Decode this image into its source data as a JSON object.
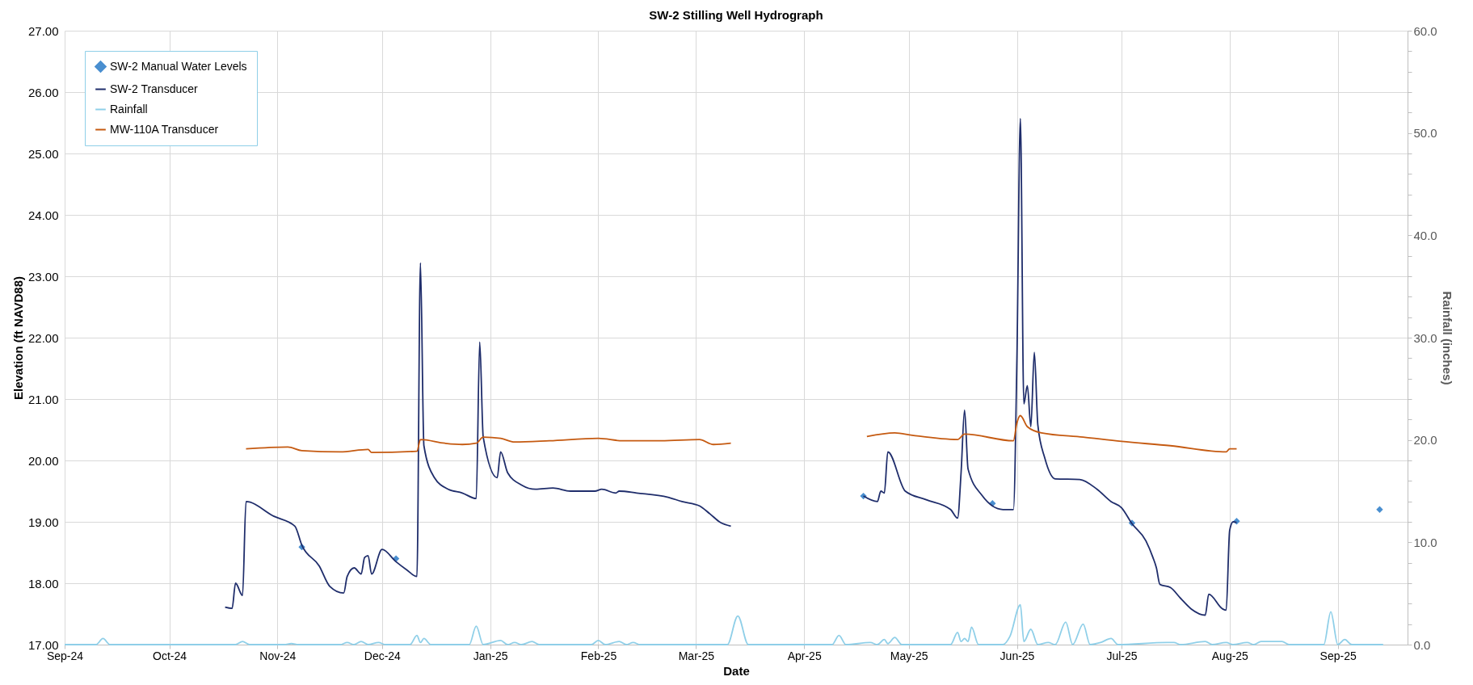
{
  "chart_data": {
    "type": "line",
    "title": "SW-2 Stilling Well Hydrograph",
    "xlabel": "Date",
    "ylabel": "Elevation (ft NAVD88)",
    "y2label": "Rainfall (inches)",
    "xlim": [
      "2024-09-01",
      "2025-09-21"
    ],
    "xticks": [
      {
        "value": "2024-09-01",
        "label": "Sep-24"
      },
      {
        "value": "2024-10-01",
        "label": "Oct-24"
      },
      {
        "value": "2024-11-01",
        "label": "Nov-24"
      },
      {
        "value": "2024-12-01",
        "label": "Dec-24"
      },
      {
        "value": "2025-01-01",
        "label": "Jan-25"
      },
      {
        "value": "2025-02-01",
        "label": "Feb-25"
      },
      {
        "value": "2025-03-01",
        "label": "Mar-25"
      },
      {
        "value": "2025-04-01",
        "label": "Apr-25"
      },
      {
        "value": "2025-05-01",
        "label": "May-25"
      },
      {
        "value": "2025-06-01",
        "label": "Jun-25"
      },
      {
        "value": "2025-07-01",
        "label": "Jul-25"
      },
      {
        "value": "2025-08-01",
        "label": "Aug-25"
      },
      {
        "value": "2025-09-01",
        "label": "Sep-25"
      }
    ],
    "ylim": [
      17,
      27
    ],
    "yticks": [
      {
        "value": 17,
        "label": "17.00"
      },
      {
        "value": 18,
        "label": "18.00"
      },
      {
        "value": 19,
        "label": "19.00"
      },
      {
        "value": 20,
        "label": "20.00"
      },
      {
        "value": 21,
        "label": "21.00"
      },
      {
        "value": 22,
        "label": "22.00"
      },
      {
        "value": 23,
        "label": "23.00"
      },
      {
        "value": 24,
        "label": "24.00"
      },
      {
        "value": 25,
        "label": "25.00"
      },
      {
        "value": 26,
        "label": "26.00"
      },
      {
        "value": 27,
        "label": "27.00"
      }
    ],
    "y2lim": [
      0,
      60
    ],
    "y2ticks": [
      {
        "value": 0,
        "label": "0.0"
      },
      {
        "value": 2,
        "label": null
      },
      {
        "value": 4,
        "label": null
      },
      {
        "value": 6,
        "label": null
      },
      {
        "value": 8,
        "label": null
      },
      {
        "value": 10,
        "label": "10.0"
      },
      {
        "value": 12,
        "label": null
      },
      {
        "value": 14,
        "label": null
      },
      {
        "value": 16,
        "label": null
      },
      {
        "value": 18,
        "label": null
      },
      {
        "value": 20,
        "label": "20.0"
      },
      {
        "value": 22,
        "label": null
      },
      {
        "value": 24,
        "label": null
      },
      {
        "value": 26,
        "label": null
      },
      {
        "value": 28,
        "label": null
      },
      {
        "value": 30,
        "label": "30.0"
      },
      {
        "value": 32,
        "label": null
      },
      {
        "value": 34,
        "label": null
      },
      {
        "value": 36,
        "label": null
      },
      {
        "value": 38,
        "label": null
      },
      {
        "value": 40,
        "label": "40.0"
      },
      {
        "value": 42,
        "label": null
      },
      {
        "value": 44,
        "label": null
      },
      {
        "value": 46,
        "label": null
      },
      {
        "value": 48,
        "label": null
      },
      {
        "value": 50,
        "label": "50.0"
      },
      {
        "value": 52,
        "label": null
      },
      {
        "value": 54,
        "label": null
      },
      {
        "value": 56,
        "label": null
      },
      {
        "value": 58,
        "label": null
      },
      {
        "value": 60,
        "label": "60.0"
      }
    ],
    "grid": true,
    "legend": "top left",
    "series": [
      {
        "name": "SW-2 Manual Water Levels",
        "type": "scatter",
        "marker": "diamond",
        "color": "#4a8fd0",
        "x": [
          "2024-11-08",
          "2024-12-05",
          "2025-04-18",
          "2025-05-25",
          "2025-07-04",
          "2025-08-03",
          "2025-09-13"
        ],
        "values": [
          18.59,
          18.4,
          19.42,
          19.3,
          18.98,
          19.01,
          19.2
        ]
      },
      {
        "name": "SW-2  Transducer",
        "color": "#1f2d6b",
        "x": [
          "2024-10-17",
          "2024-10-19",
          "2024-10-20",
          "2024-10-22",
          "2024-10-23",
          "2024-10-31",
          "2024-11-06",
          "2024-11-08",
          "2024-11-13",
          "2024-11-16",
          "2024-11-20",
          "2024-11-21",
          "2024-11-23",
          "2024-11-25",
          "2024-11-26",
          "2024-11-27",
          "2024-11-28",
          "2024-12-01",
          "2024-12-05",
          "2024-12-08",
          "2024-12-11",
          "2024-12-12",
          "2024-12-13",
          "2024-12-16",
          "2024-12-20",
          "2024-12-24",
          "2024-12-28",
          "2024-12-29",
          "2024-12-30",
          "2025-01-03",
          "2025-01-04",
          "2025-01-06",
          "2025-01-10",
          "2025-01-14",
          "2025-01-19",
          "2025-01-24",
          "2025-01-31",
          "2025-02-02",
          "2025-02-06",
          "2025-02-07",
          "2025-02-12",
          "2025-02-21",
          "2025-02-25",
          "2025-03-02",
          "2025-03-05",
          "2025-03-08",
          "2025-03-11",
          "2025-04-01",
          "2025-04-18",
          "2025-04-22",
          "2025-04-23",
          "2025-04-24",
          "2025-04-25",
          "2025-04-30",
          "2025-05-06",
          "2025-05-13",
          "2025-05-15",
          "2025-05-16",
          "2025-05-17",
          "2025-05-18",
          "2025-05-22",
          "2025-05-28",
          "2025-05-31",
          "2025-06-01",
          "2025-06-02",
          "2025-06-03",
          "2025-06-04",
          "2025-06-05",
          "2025-06-06",
          "2025-06-07",
          "2025-06-09",
          "2025-06-12",
          "2025-06-19",
          "2025-06-24",
          "2025-06-28",
          "2025-07-01",
          "2025-07-04",
          "2025-07-08",
          "2025-07-10",
          "2025-07-11",
          "2025-07-12",
          "2025-07-15",
          "2025-07-18",
          "2025-07-21",
          "2025-07-25",
          "2025-07-26",
          "2025-07-30",
          "2025-07-31",
          "2025-08-01",
          "2025-08-02",
          "2025-08-03"
        ],
        "values": [
          17.61,
          17.59,
          18.0,
          17.8,
          19.33,
          19.09,
          18.93,
          18.62,
          18.28,
          17.95,
          17.84,
          18.11,
          18.25,
          18.15,
          18.42,
          18.45,
          18.15,
          18.55,
          18.35,
          18.22,
          18.11,
          23.22,
          20.24,
          19.72,
          19.53,
          19.47,
          19.38,
          21.93,
          20.38,
          19.72,
          20.14,
          19.8,
          19.6,
          19.53,
          19.55,
          19.5,
          19.5,
          19.53,
          19.47,
          19.5,
          19.47,
          19.4,
          19.33,
          19.26,
          19.13,
          18.99,
          18.93,
          null,
          19.42,
          19.33,
          19.5,
          19.47,
          20.14,
          19.5,
          19.36,
          19.2,
          19.06,
          19.8,
          20.82,
          19.86,
          19.43,
          19.2,
          19.2,
          21.63,
          25.57,
          20.92,
          21.22,
          20.55,
          21.76,
          20.58,
          20.04,
          19.7,
          19.69,
          19.53,
          19.33,
          19.23,
          18.97,
          18.69,
          18.42,
          18.25,
          17.98,
          17.93,
          17.75,
          17.58,
          17.48,
          17.82,
          17.58,
          17.56,
          18.86,
          19.0,
          18.99
        ]
      },
      {
        "name": "Rainfall",
        "axis": "y2",
        "color": "#8fcfe8",
        "x": [
          "2024-09-01",
          "2024-09-10",
          "2024-09-12",
          "2024-09-14",
          "2024-10-20",
          "2024-10-22",
          "2024-10-24",
          "2024-11-03",
          "2024-11-05",
          "2024-11-07",
          "2024-11-19",
          "2024-11-21",
          "2024-11-23",
          "2024-11-25",
          "2024-11-27",
          "2024-11-30",
          "2024-12-02",
          "2024-12-09",
          "2024-12-11",
          "2024-12-12",
          "2024-12-13",
          "2024-12-15",
          "2024-12-26",
          "2024-12-28",
          "2024-12-30",
          "2025-01-04",
          "2025-01-06",
          "2025-01-08",
          "2025-01-10",
          "2025-01-13",
          "2025-01-15",
          "2025-01-30",
          "2025-02-01",
          "2025-02-03",
          "2025-02-07",
          "2025-02-09",
          "2025-02-11",
          "2025-02-13",
          "2025-03-10",
          "2025-03-13",
          "2025-03-16",
          "2025-04-09",
          "2025-04-11",
          "2025-04-13",
          "2025-04-20",
          "2025-04-22",
          "2025-04-24",
          "2025-04-25",
          "2025-04-27",
          "2025-04-29",
          "2025-05-13",
          "2025-05-15",
          "2025-05-16",
          "2025-05-17",
          "2025-05-18",
          "2025-05-19",
          "2025-05-21",
          "2025-05-28",
          "2025-05-30",
          "2025-06-02",
          "2025-06-03",
          "2025-06-05",
          "2025-06-07",
          "2025-06-10",
          "2025-06-12",
          "2025-06-15",
          "2025-06-17",
          "2025-06-20",
          "2025-06-22",
          "2025-06-25",
          "2025-06-28",
          "2025-06-30",
          "2025-07-14",
          "2025-07-16",
          "2025-07-18",
          "2025-07-25",
          "2025-07-27",
          "2025-07-31",
          "2025-08-02",
          "2025-08-06",
          "2025-08-08",
          "2025-08-10",
          "2025-08-13",
          "2025-08-16",
          "2025-08-18",
          "2025-08-28",
          "2025-08-30",
          "2025-09-01",
          "2025-09-03",
          "2025-09-05",
          "2025-09-14"
        ],
        "values": [
          0,
          0,
          0.6,
          0,
          0,
          0.3,
          0,
          0,
          0.1,
          0,
          0,
          0.2,
          0,
          0.3,
          0,
          0.2,
          0,
          0,
          0.9,
          0.2,
          0.6,
          0,
          0,
          1.8,
          0,
          0.4,
          0,
          0.2,
          0,
          0.3,
          0,
          0,
          0.4,
          0,
          0.3,
          0,
          0.2,
          0,
          0,
          2.8,
          0,
          0,
          0.9,
          0,
          0.2,
          0,
          0.5,
          0.1,
          0.7,
          0,
          0,
          1.2,
          0.3,
          0.6,
          0.3,
          1.7,
          0,
          0,
          0.8,
          3.9,
          0.3,
          1.5,
          0,
          0.2,
          0,
          2.2,
          0,
          2.0,
          0,
          0.2,
          0.6,
          0,
          0.2,
          0.2,
          0,
          0.3,
          0,
          0.2,
          0,
          0.2,
          0,
          0.3,
          0.3,
          0.3,
          0,
          0,
          3.2,
          0,
          0.5,
          0,
          0
        ]
      },
      {
        "name": "MW-110A Transducer",
        "color": "#c55a11",
        "x": [
          "2024-10-23",
          "2024-11-04",
          "2024-11-08",
          "2024-11-19",
          "2024-11-27",
          "2024-11-28",
          "2024-12-11",
          "2024-12-12",
          "2024-12-19",
          "2024-12-24",
          "2024-12-28",
          "2024-12-30",
          "2025-01-04",
          "2025-01-08",
          "2025-01-18",
          "2025-02-01",
          "2025-02-08",
          "2025-02-19",
          "2025-03-02",
          "2025-03-06",
          "2025-03-11",
          "2025-04-01",
          "2025-04-19",
          "2025-04-27",
          "2025-05-02",
          "2025-05-15",
          "2025-05-17",
          "2025-05-31",
          "2025-06-01",
          "2025-06-02",
          "2025-06-04",
          "2025-06-08",
          "2025-06-20",
          "2025-07-01",
          "2025-07-15",
          "2025-07-31",
          "2025-08-01",
          "2025-08-03"
        ],
        "values": [
          20.19,
          20.22,
          20.16,
          20.14,
          20.18,
          20.13,
          20.15,
          20.34,
          20.28,
          20.26,
          20.28,
          20.38,
          20.36,
          20.3,
          20.32,
          20.36,
          20.32,
          20.32,
          20.34,
          20.26,
          20.28,
          null,
          20.39,
          20.45,
          20.41,
          20.34,
          20.43,
          20.32,
          20.61,
          20.73,
          20.55,
          20.45,
          20.38,
          20.31,
          20.24,
          20.14,
          20.19,
          20.19
        ]
      }
    ]
  }
}
